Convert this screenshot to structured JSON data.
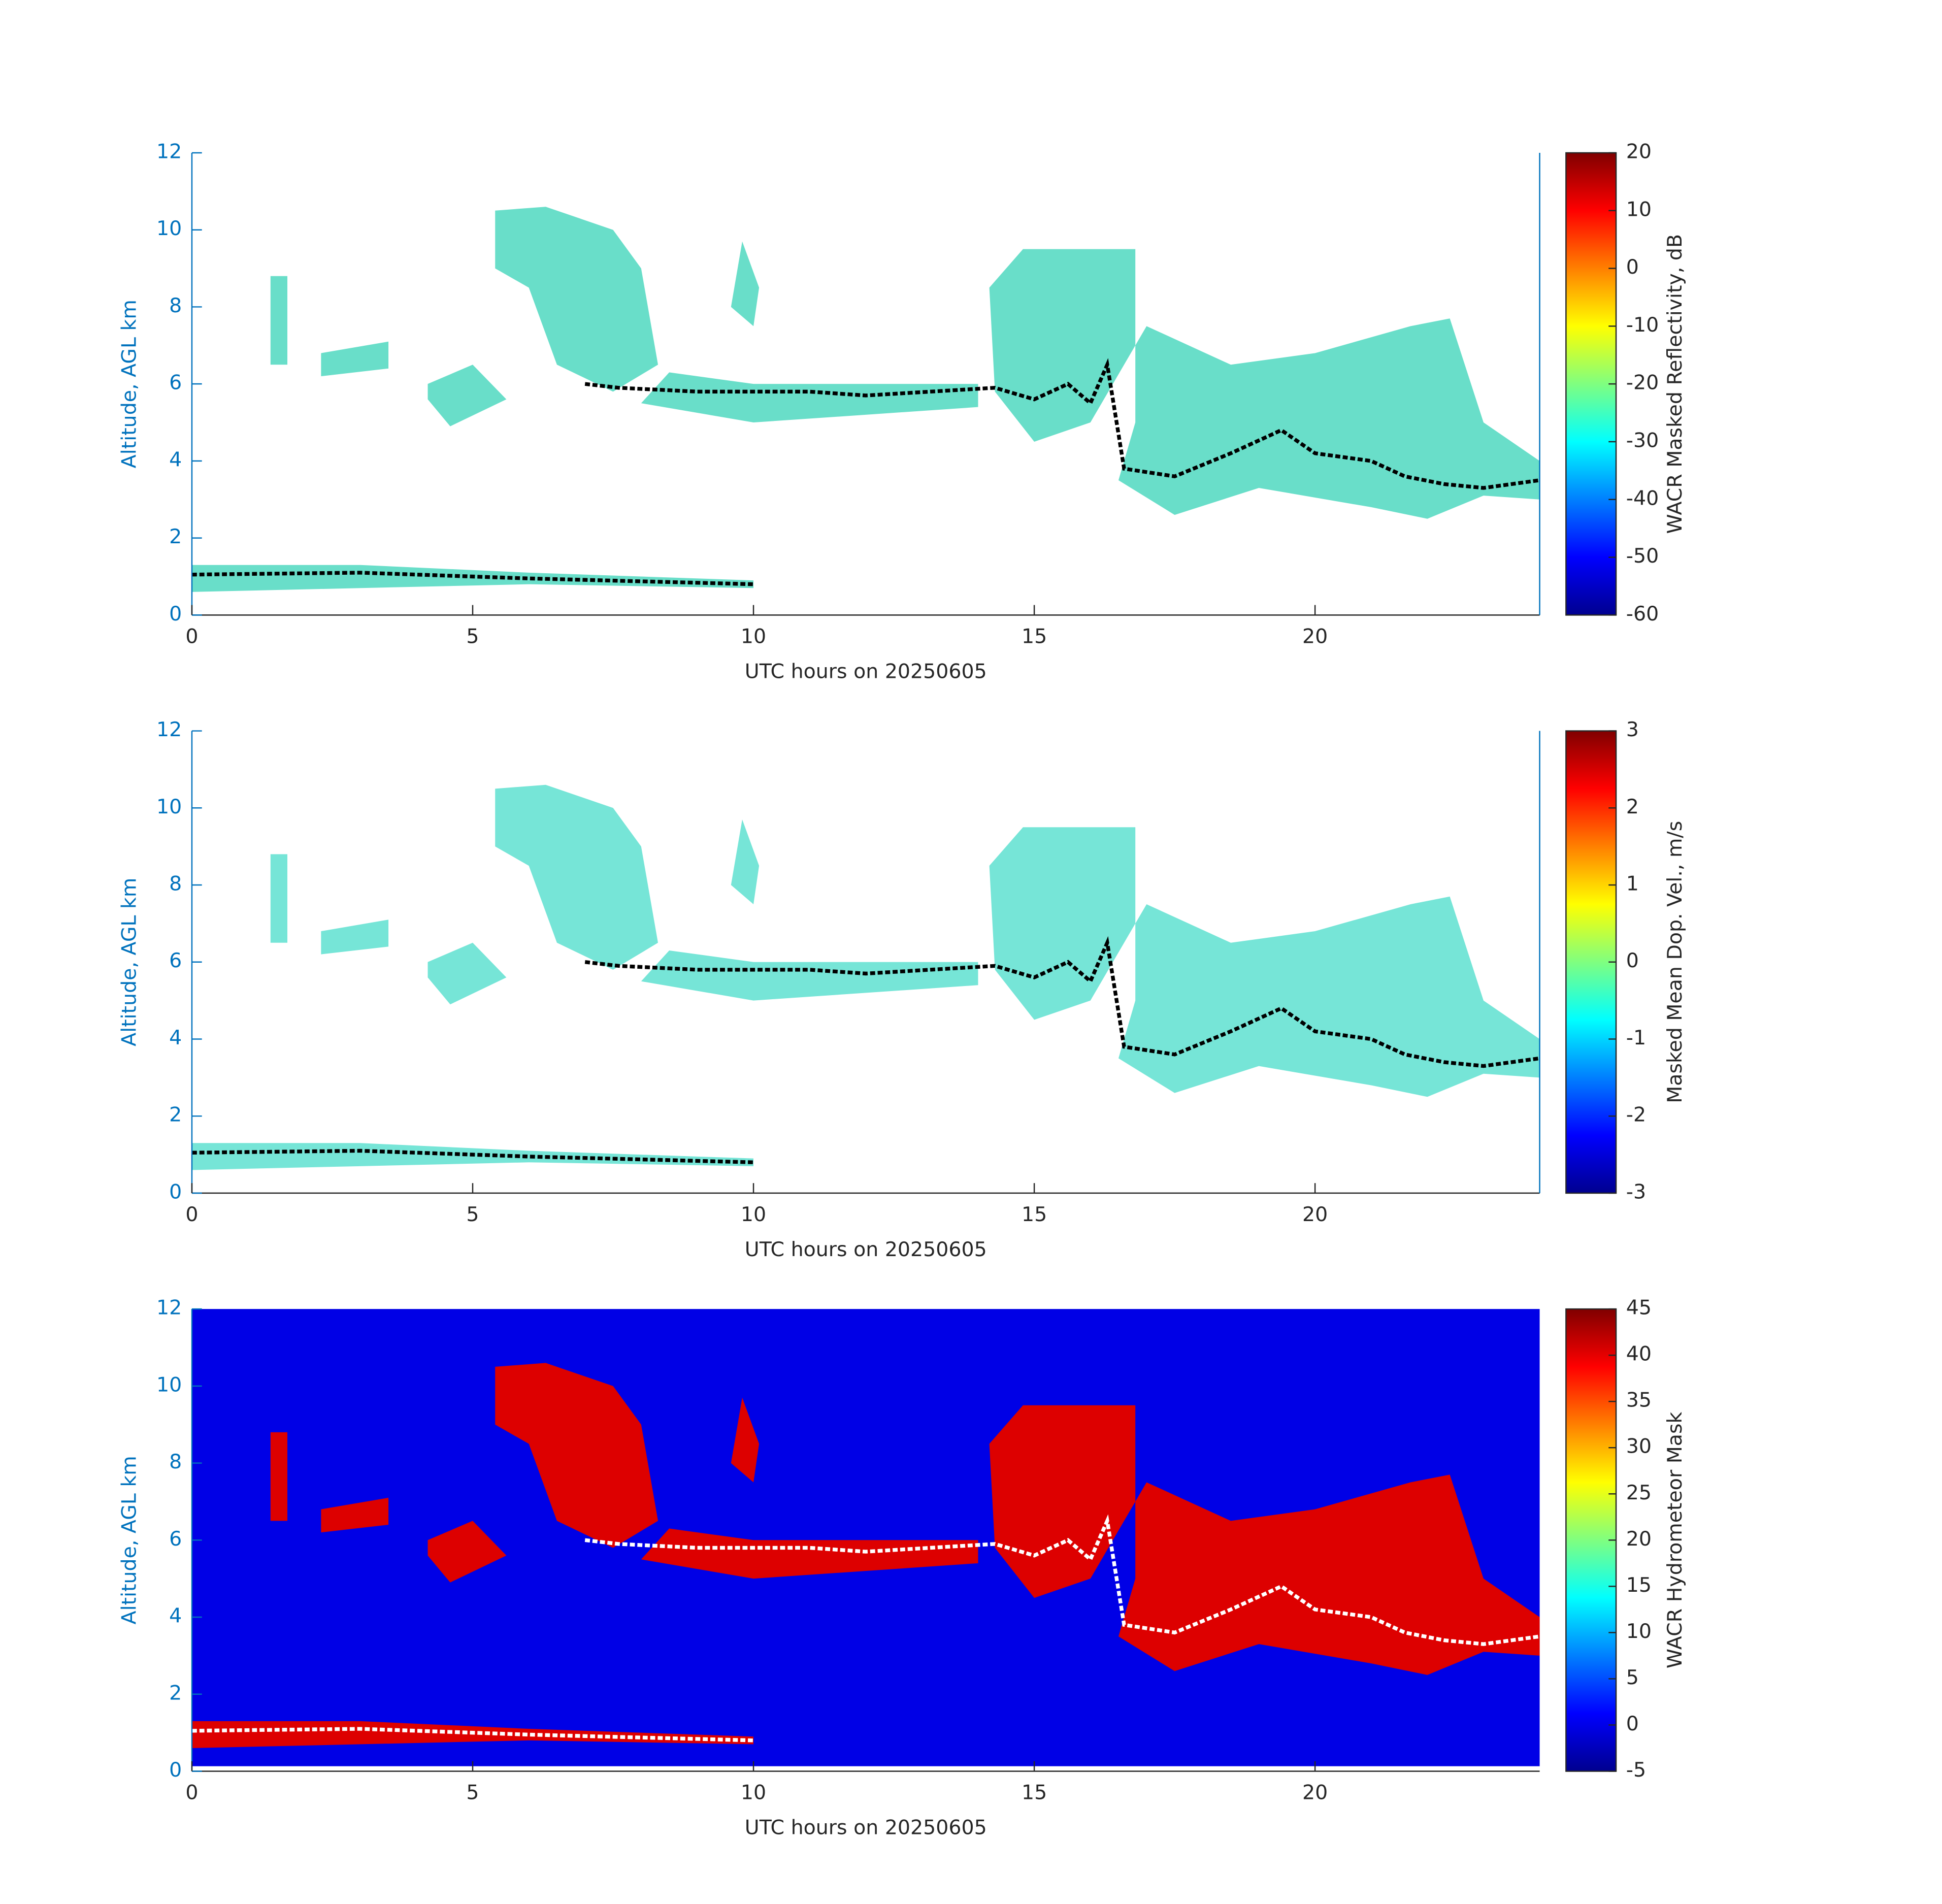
{
  "chart_data": [
    {
      "type": "heatmap",
      "xlabel": "UTC hours on 20250605",
      "ylabel": "Altitude, AGL km",
      "xlim": [
        0,
        24
      ],
      "xticks": [
        0,
        5,
        10,
        15,
        20
      ],
      "ylim": [
        0,
        12
      ],
      "yticks": [
        0,
        2,
        4,
        6,
        8,
        10,
        12
      ],
      "colorbar": {
        "label": "WACR Masked Reflectivity, dB",
        "lim": [
          -60,
          20
        ],
        "ticks": [
          -60,
          -50,
          -40,
          -30,
          -20,
          -10,
          0,
          10,
          20
        ],
        "colormap": "jet"
      },
      "fill": "#4fd8c0",
      "marker_color": "#000000",
      "background": "#ffffff"
    },
    {
      "type": "heatmap",
      "xlabel": "UTC hours on 20250605",
      "ylabel": "Altitude, AGL km",
      "xlim": [
        0,
        24
      ],
      "xticks": [
        0,
        5,
        10,
        15,
        20
      ],
      "ylim": [
        0,
        12
      ],
      "yticks": [
        0,
        2,
        4,
        6,
        8,
        10,
        12
      ],
      "colorbar": {
        "label": "Masked Mean Dop. Vel., m/s",
        "lim": [
          -3,
          3
        ],
        "ticks": [
          -3,
          -2,
          -1,
          0,
          1,
          2,
          3
        ],
        "colormap": "jet"
      },
      "fill": "#5ee0d0",
      "marker_color": "#000000",
      "background": "#ffffff"
    },
    {
      "type": "heatmap",
      "xlabel": "UTC hours on 20250605",
      "ylabel": "Altitude, AGL km",
      "xlim": [
        0,
        24
      ],
      "xticks": [
        0,
        5,
        10,
        15,
        20
      ],
      "ylim": [
        0,
        12
      ],
      "yticks": [
        0,
        2,
        4,
        6,
        8,
        10,
        12
      ],
      "colorbar": {
        "label": "WACR Hydrometeor Mask",
        "lim": [
          -5,
          45
        ],
        "ticks": [
          -5,
          0,
          5,
          10,
          15,
          20,
          25,
          30,
          35,
          40,
          45
        ],
        "colormap": "jet"
      },
      "fill": "#dd0000",
      "marker_color": "#ffffff",
      "background": "#0000e6"
    }
  ]
}
